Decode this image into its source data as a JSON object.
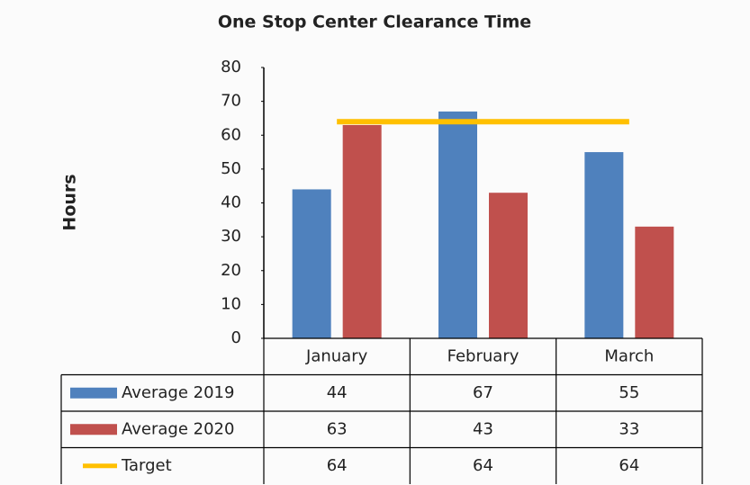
{
  "chart_data": {
    "type": "bar",
    "title": "One Stop Center Clearance Time",
    "y_label": "Hours",
    "categories": [
      "January",
      "February",
      "March"
    ],
    "series": [
      {
        "name": "Average 2019",
        "color": "#4f81bd",
        "values": [
          44,
          67,
          55
        ]
      },
      {
        "name": "Average 2020",
        "color": "#c0504d",
        "values": [
          63,
          43,
          33
        ]
      },
      {
        "name": "Target",
        "type": "line",
        "color": "#ffc000",
        "values": [
          64,
          64,
          64
        ]
      }
    ],
    "ylim": [
      0,
      80
    ],
    "yticks": [
      0,
      10,
      20,
      30,
      40,
      50,
      60,
      70,
      80
    ],
    "data_table": true
  }
}
